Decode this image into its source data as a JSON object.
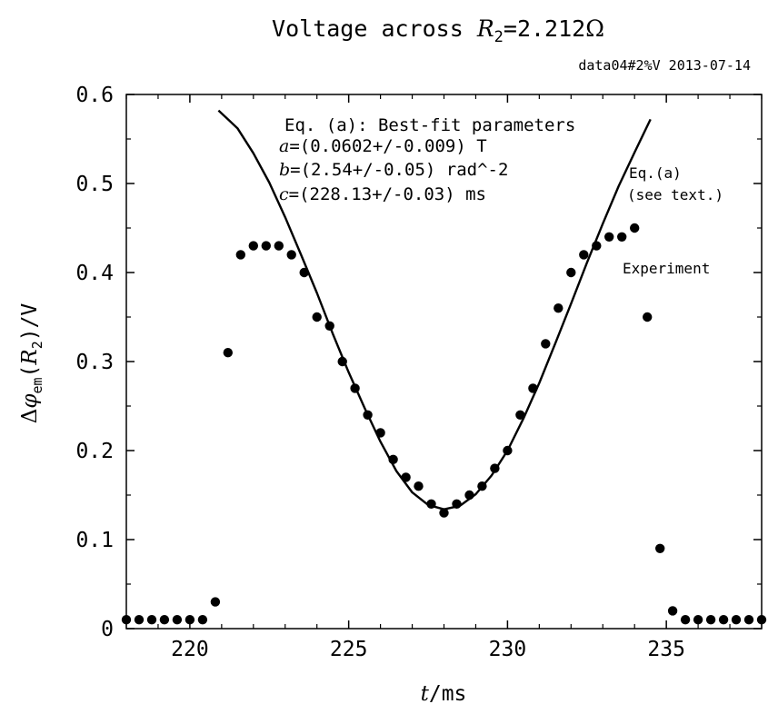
{
  "chart_data": {
    "type": "scatter",
    "title": {
      "prefix": "Voltage across ",
      "var": "R",
      "sub": "2",
      "value": "=2.212",
      "unit": "Ω"
    },
    "subtitle": "data04#2%V 2013-07-14",
    "xlabel": {
      "var": "t",
      "unit": "/ms"
    },
    "ylabel": {
      "prefix": "Δ",
      "var": "φ",
      "sub": "em",
      "open": "(",
      "var2": "R",
      "sub2": "2",
      "close": ")/V"
    },
    "xlim": [
      218,
      238
    ],
    "ylim": [
      0,
      0.6
    ],
    "xticks": [
      220,
      225,
      230,
      235
    ],
    "xtick_labels": [
      "220",
      "225",
      "230",
      "235"
    ],
    "yticks": [
      0,
      0.1,
      0.2,
      0.3,
      0.4,
      0.5,
      0.6
    ],
    "ytick_labels": [
      "0",
      "0.1",
      "0.2",
      "0.3",
      "0.4",
      "0.5",
      "0.6"
    ],
    "grid": false,
    "annotations": {
      "header": "Eq. (a): Best-fit parameters",
      "params": [
        {
          "var": "a",
          "text": "=(0.0602+/-0.009) T"
        },
        {
          "var": "b",
          "text": "=(2.54+/-0.05) rad^-2"
        },
        {
          "var": "c",
          "text": "=(228.13+/-0.03) ms"
        }
      ],
      "fit_label_1": "Eq.(a)",
      "fit_label_2": "(see text.)",
      "exp_label": "Experiment"
    },
    "series": [
      {
        "kind": "points",
        "x": [
          218.0,
          218.4,
          218.8,
          219.2,
          219.6,
          220.0,
          220.4,
          220.8,
          221.2,
          221.6,
          222.0,
          222.4,
          222.8,
          223.2,
          223.6,
          224.0,
          224.4,
          224.8,
          225.2,
          225.6,
          226.0,
          226.4,
          226.8,
          227.2,
          227.6,
          228.0,
          228.4,
          228.8,
          229.2,
          229.6,
          230.0,
          230.4,
          230.8,
          231.2,
          231.6,
          232.0,
          232.4,
          232.8,
          233.2,
          233.6,
          234.0,
          234.4,
          234.8,
          235.2,
          235.6,
          236.0,
          236.4,
          236.8,
          237.2,
          237.6,
          238.0
        ],
        "y": [
          0.01,
          0.01,
          0.01,
          0.01,
          0.01,
          0.01,
          0.01,
          0.03,
          0.31,
          0.42,
          0.43,
          0.43,
          0.43,
          0.42,
          0.4,
          0.35,
          0.34,
          0.3,
          0.27,
          0.24,
          0.22,
          0.19,
          0.17,
          0.16,
          0.14,
          0.13,
          0.14,
          0.15,
          0.16,
          0.18,
          0.2,
          0.24,
          0.27,
          0.32,
          0.36,
          0.4,
          0.42,
          0.43,
          0.44,
          0.44,
          0.45,
          0.35,
          0.09,
          0.02,
          0.01,
          0.01,
          0.01,
          0.01,
          0.01,
          0.01,
          0.01
        ]
      },
      {
        "kind": "line",
        "x": [
          220.9,
          221.5,
          222.0,
          222.5,
          223.0,
          223.5,
          224.0,
          224.5,
          225.0,
          225.5,
          226.0,
          226.5,
          227.0,
          227.5,
          228.0,
          228.5,
          229.0,
          229.5,
          230.0,
          230.5,
          231.0,
          231.5,
          232.0,
          232.5,
          233.0,
          233.5,
          234.0,
          234.5
        ],
        "y": [
          0.582,
          0.562,
          0.534,
          0.501,
          0.462,
          0.42,
          0.377,
          0.331,
          0.288,
          0.248,
          0.21,
          0.177,
          0.153,
          0.139,
          0.134,
          0.138,
          0.151,
          0.172,
          0.2,
          0.236,
          0.276,
          0.32,
          0.365,
          0.411,
          0.455,
          0.497,
          0.535,
          0.572
        ]
      }
    ]
  }
}
